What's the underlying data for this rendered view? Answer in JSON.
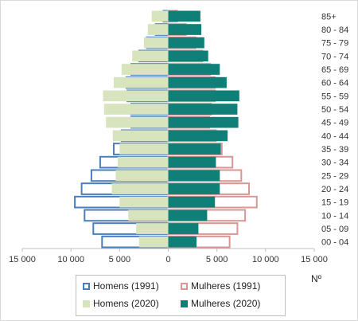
{
  "chart_data": {
    "type": "bar",
    "orientation": "horizontal-population-pyramid",
    "categories": [
      "00 - 04",
      "05 - 09",
      "10 - 14",
      "15 - 19",
      "20 - 24",
      "25 - 29",
      "30 - 34",
      "35 - 39",
      "40 - 44",
      "45 - 49",
      "50 - 54",
      "55 - 59",
      "60 - 64",
      "65 - 69",
      "70 - 74",
      "75 - 79",
      "80 - 84",
      "85+"
    ],
    "x_unit_label": "Nº",
    "xlim": [
      -15000,
      15000
    ],
    "x_ticks": [
      -15000,
      -10000,
      -5000,
      0,
      5000,
      10000,
      15000
    ],
    "x_tick_labels": [
      "15 000",
      "10 000",
      "5 000",
      "0",
      "5 000",
      "10 000",
      "15 000"
    ],
    "series": [
      {
        "name": "Homens (1991)",
        "side": "left",
        "style": "outline",
        "color": "#4a7ebb",
        "values": [
          6800,
          7700,
          8600,
          9600,
          8900,
          7900,
          7000,
          5600,
          4800,
          3800,
          3800,
          4200,
          4300,
          3800,
          3000,
          2200,
          1300,
          500
        ]
      },
      {
        "name": "Mulheres (1991)",
        "side": "right",
        "style": "outline",
        "color": "#d99694",
        "values": [
          6300,
          7100,
          7900,
          9100,
          8300,
          7500,
          6600,
          5500,
          4900,
          4200,
          4400,
          4800,
          4800,
          4300,
          3500,
          2800,
          1800,
          900
        ]
      },
      {
        "name": "Homens (2020)",
        "side": "left",
        "style": "fill",
        "color": "#d7e4bd",
        "values": [
          3000,
          3300,
          4100,
          5000,
          5800,
          5400,
          5200,
          5000,
          5700,
          6400,
          6600,
          6700,
          5600,
          4800,
          3700,
          2500,
          2100,
          1700
        ]
      },
      {
        "name": "Mulheres (2020)",
        "side": "right",
        "style": "fill",
        "color": "#0f7f77",
        "values": [
          2900,
          3100,
          4000,
          4800,
          5300,
          5300,
          4900,
          5400,
          6100,
          7200,
          7100,
          7300,
          6000,
          5300,
          4100,
          3700,
          3400,
          3300
        ]
      }
    ],
    "grid": false,
    "legend_position": "bottom"
  }
}
